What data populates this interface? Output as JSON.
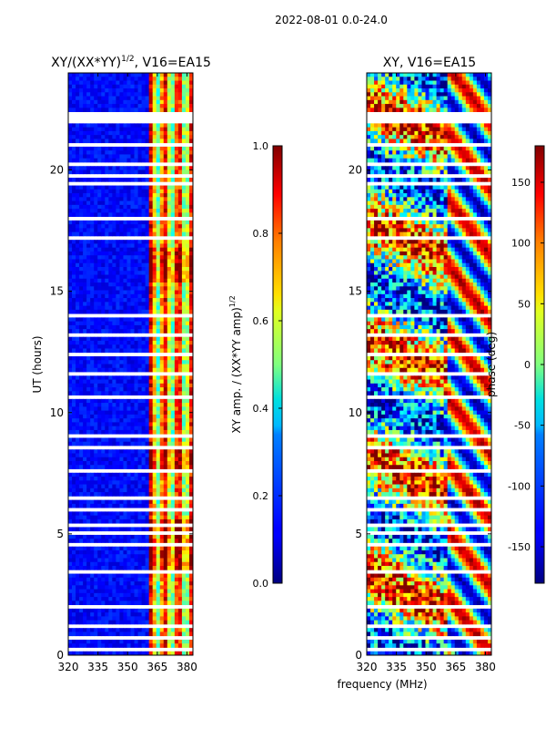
{
  "figure": {
    "suptitle": "2022-08-01 0.0-24.0",
    "xlabel": "frequency (MHz)"
  },
  "chart_data": [
    {
      "type": "heatmap",
      "title": "XY/(XX*YY)$^{1/2}$, V16=EA15",
      "title_main": "XY/(XX*YY)",
      "title_sup": "1/2",
      "title_tail": ", V16=EA15",
      "xlabel": "",
      "ylabel": "UT (hours)",
      "xlim": [
        320,
        383
      ],
      "ylim": [
        0,
        24
      ],
      "xticks": [
        320,
        335,
        350,
        365,
        380
      ],
      "yticks": [
        0,
        5,
        10,
        15,
        20
      ],
      "colorbar": {
        "label_main": "XY amp. / (XX*YY amp)",
        "label_sup": "1/2",
        "range": [
          0.0,
          1.0
        ],
        "ticks": [
          "0.0",
          "0.2",
          "0.4",
          "0.6",
          "0.8",
          "1.0"
        ],
        "tick_values": [
          0.0,
          0.2,
          0.4,
          0.6,
          0.8,
          1.0
        ],
        "colormap": "jet"
      },
      "gaps_hours": [
        0.3,
        0.7,
        1.2,
        2.0,
        2.4,
        3.4,
        4.5,
        5.0,
        5.3,
        6.0,
        6.5,
        7.2,
        7.6,
        8.0,
        8.6,
        9.0,
        9.6,
        10.6,
        11.6,
        12.4,
        13.2,
        14.0,
        14.4,
        15.2,
        16.8,
        17.2,
        17.6,
        18.0,
        19.4,
        19.7,
        20.2,
        21.1
      ],
      "gap_band_hours": [
        21.9,
        22.4
      ],
      "note": "Strong coherence (0.6-0.9) concentrated in channels ~360-382 MHz; low (~0.05-0.15) elsewhere"
    },
    {
      "type": "heatmap",
      "title": "XY, V16=EA15",
      "xlabel": "",
      "ylabel": "",
      "xlim": [
        320,
        383
      ],
      "ylim": [
        0,
        24
      ],
      "xticks": [
        320,
        335,
        350,
        365,
        380
      ],
      "yticks": [
        0,
        5,
        10,
        15,
        20
      ],
      "colorbar": {
        "label": "phase (deg)",
        "range": [
          -180,
          180
        ],
        "ticks": [
          "-150",
          "-100",
          "-50",
          "0",
          "50",
          "100",
          "150"
        ],
        "tick_values": [
          -150,
          -100,
          -50,
          0,
          50,
          100,
          150
        ],
        "colormap": "jet"
      },
      "gaps_hours": [
        0.3,
        0.7,
        1.2,
        2.0,
        2.4,
        3.4,
        4.5,
        5.0,
        5.3,
        6.0,
        6.5,
        7.2,
        7.6,
        8.0,
        8.6,
        9.0,
        9.6,
        10.6,
        11.6,
        12.4,
        13.2,
        14.0,
        14.4,
        15.2,
        16.8,
        17.2,
        17.6,
        18.0,
        19.4,
        19.7,
        20.2,
        21.1
      ],
      "gap_band_hours": [
        21.9,
        22.4
      ],
      "note": "Phase wraps through full -180..180 range; noisy red/blue structure at 320-360 MHz, smooth banded stripes 360-383 MHz"
    }
  ]
}
